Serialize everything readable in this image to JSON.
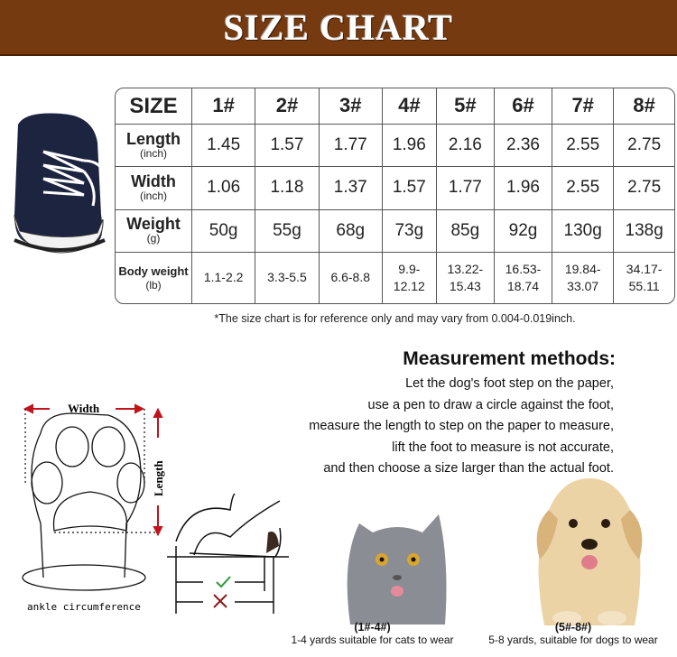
{
  "banner": {
    "title": "SIZE CHART",
    "color": "#763a10"
  },
  "table": {
    "header": {
      "label": "SIZE",
      "sizes": [
        "1#",
        "2#",
        "3#",
        "4#",
        "5#",
        "6#",
        "7#",
        "8#"
      ]
    },
    "rows": [
      {
        "label": "Length",
        "unit": "(inch)",
        "values": [
          "1.45",
          "1.57",
          "1.77",
          "1.96",
          "2.16",
          "2.36",
          "2.55",
          "2.75"
        ]
      },
      {
        "label": "Width",
        "unit": "(inch)",
        "values": [
          "1.06",
          "1.18",
          "1.37",
          "1.57",
          "1.77",
          "1.96",
          "2.55",
          "2.75"
        ]
      },
      {
        "label": "Weight",
        "unit": "(g)",
        "values": [
          "50g",
          "55g",
          "68g",
          "73g",
          "85g",
          "92g",
          "130g",
          "138g"
        ]
      }
    ],
    "body_weight": {
      "label": "Body weight",
      "unit": "(lb)",
      "values": [
        [
          "1.1-2.2",
          ""
        ],
        [
          "3.3-5.5",
          ""
        ],
        [
          "6.6-8.8",
          ""
        ],
        [
          "9.9-",
          "12.12"
        ],
        [
          "13.22-",
          "15.43"
        ],
        [
          "16.53-",
          "18.74"
        ],
        [
          "19.84-",
          "33.07"
        ],
        [
          "34.17-",
          "55.11"
        ]
      ]
    }
  },
  "note": "*The size chart is for reference only and may vary from 0.004-0.019inch.",
  "measurement": {
    "title": "Measurement methods:",
    "lines": [
      "Let the dog's foot step on the paper,",
      "use a pen to draw a circle against the foot,",
      "measure the length to step on the paper to measure,",
      "lift the foot to measure is not accurate,",
      "and then choose a size larger than the actual foot."
    ]
  },
  "diagram": {
    "width_label": "Width",
    "length_label": "Length",
    "ankle_label": "ankle circumference",
    "arrow_color": "#c0141b",
    "check_color": "#2e9a3a",
    "cross_color": "#8a1a1a"
  },
  "pets": [
    {
      "name": "cat",
      "range": "(1#-4#)",
      "caption": "1-4 yards suitable for cats to wear"
    },
    {
      "name": "dog",
      "range": "(5#-8#)",
      "caption": "5-8 yards, suitable for dogs to wear"
    }
  ]
}
